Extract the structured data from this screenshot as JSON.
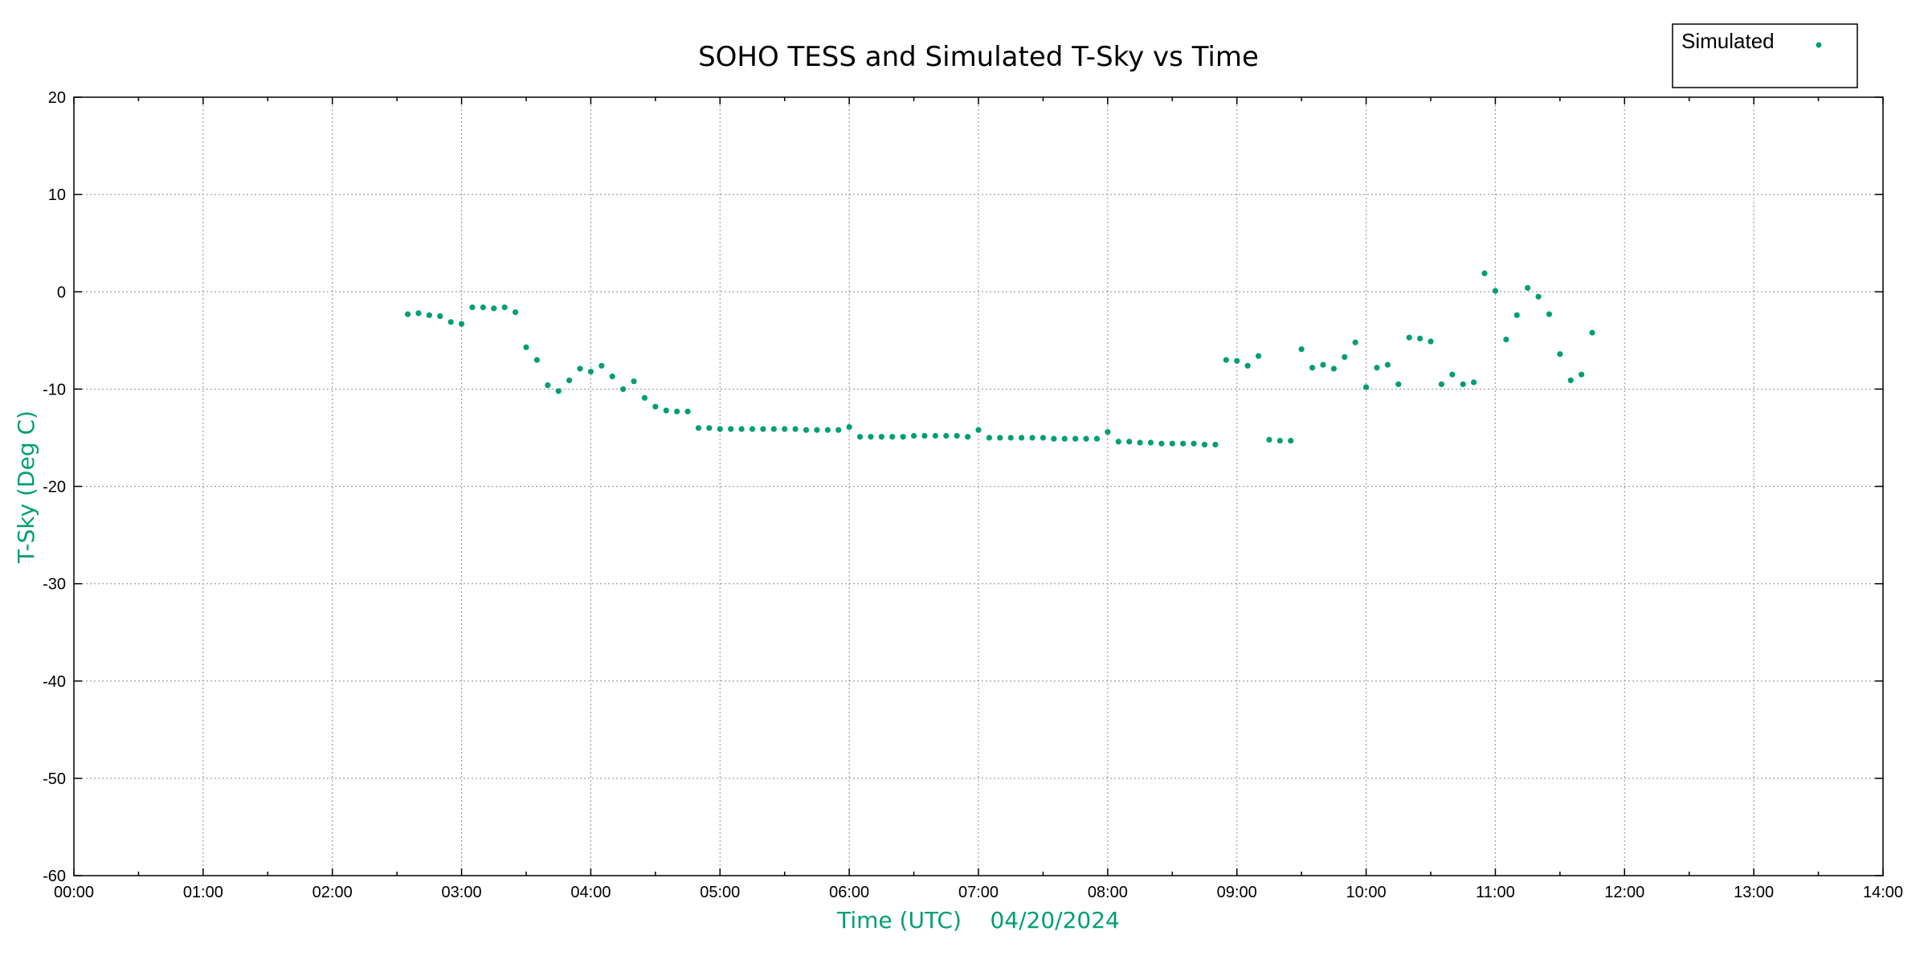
{
  "chart_data": {
    "type": "scatter",
    "title": "SOHO TESS and Simulated T-Sky vs Time",
    "xlabel": "Time (UTC)    04/20/2024",
    "ylabel": "T-Sky (Deg C)",
    "xlim": [
      "00:00",
      "14:00"
    ],
    "ylim": [
      -60,
      20
    ],
    "x_ticks": [
      "00:00",
      "01:00",
      "02:00",
      "03:00",
      "04:00",
      "05:00",
      "06:00",
      "07:00",
      "08:00",
      "09:00",
      "10:00",
      "11:00",
      "12:00",
      "13:00",
      "14:00"
    ],
    "y_ticks": [
      "20",
      "10",
      "0",
      "-10",
      "-20",
      "-30",
      "-40",
      "-50",
      "-60"
    ],
    "grid": true,
    "legend": {
      "placement": "top-right",
      "entries": [
        "Simulated"
      ]
    },
    "colors": {
      "series": "#009e73"
    },
    "series": [
      {
        "name": "Simulated",
        "x": [
          "02:35",
          "02:40",
          "02:45",
          "02:50",
          "02:55",
          "03:00",
          "03:05",
          "03:10",
          "03:15",
          "03:20",
          "03:25",
          "03:30",
          "03:35",
          "03:40",
          "03:45",
          "03:50",
          "03:55",
          "04:00",
          "04:05",
          "04:10",
          "04:15",
          "04:20",
          "04:25",
          "04:30",
          "04:35",
          "04:40",
          "04:45",
          "04:50",
          "04:55",
          "05:00",
          "05:05",
          "05:10",
          "05:15",
          "05:20",
          "05:25",
          "05:30",
          "05:35",
          "05:40",
          "05:45",
          "05:50",
          "05:55",
          "06:00",
          "06:05",
          "06:10",
          "06:15",
          "06:20",
          "06:25",
          "06:30",
          "06:35",
          "06:40",
          "06:45",
          "06:50",
          "06:55",
          "07:00",
          "07:05",
          "07:10",
          "07:15",
          "07:20",
          "07:25",
          "07:30",
          "07:35",
          "07:40",
          "07:45",
          "07:50",
          "07:55",
          "08:00",
          "08:05",
          "08:10",
          "08:15",
          "08:20",
          "08:25",
          "08:30",
          "08:35",
          "08:40",
          "08:45",
          "08:50",
          "08:55",
          "09:00",
          "09:05",
          "09:10",
          "09:15",
          "09:20",
          "09:25",
          "09:30",
          "09:35",
          "09:40",
          "09:45",
          "09:50",
          "09:55",
          "10:00",
          "10:05",
          "10:10",
          "10:15",
          "10:20",
          "10:25",
          "10:30",
          "10:35",
          "10:40",
          "10:45",
          "10:50",
          "10:55",
          "11:00",
          "11:05",
          "11:10",
          "11:15",
          "11:20",
          "11:25",
          "11:30",
          "11:35",
          "11:40",
          "11:45"
        ],
        "y": [
          -2.3,
          -2.2,
          -2.4,
          -2.5,
          -3.1,
          -3.3,
          -1.6,
          -1.6,
          -1.7,
          -1.6,
          -2.1,
          -5.7,
          -7.0,
          -9.6,
          -10.2,
          -9.1,
          -7.9,
          -8.2,
          -7.6,
          -8.7,
          -10.0,
          -9.2,
          -10.9,
          -11.8,
          -12.2,
          -12.3,
          -12.3,
          -14.0,
          -14.0,
          -14.1,
          -14.1,
          -14.1,
          -14.1,
          -14.1,
          -14.1,
          -14.1,
          -14.1,
          -14.2,
          -14.2,
          -14.2,
          -14.2,
          -13.9,
          -14.9,
          -14.9,
          -14.9,
          -14.9,
          -14.9,
          -14.8,
          -14.8,
          -14.8,
          -14.8,
          -14.8,
          -14.9,
          -14.2,
          -15.0,
          -15.0,
          -15.0,
          -15.0,
          -15.0,
          -15.0,
          -15.1,
          -15.1,
          -15.1,
          -15.1,
          -15.1,
          -14.4,
          -15.4,
          -15.4,
          -15.5,
          -15.5,
          -15.6,
          -15.6,
          -15.6,
          -15.6,
          -15.7,
          -15.7,
          -7.0,
          -7.1,
          -7.6,
          -6.6,
          -15.2,
          -15.3,
          -15.3,
          -5.9,
          -7.8,
          -7.5,
          -7.9,
          -6.7,
          -5.2,
          -9.8,
          -7.8,
          -7.5,
          -9.5,
          -4.7,
          -4.8,
          -5.1,
          -9.5,
          -8.5,
          -9.5,
          -9.3,
          1.9,
          0.1,
          -4.9,
          -2.4,
          0.4,
          -0.5,
          -2.3,
          -6.4,
          -9.1,
          -8.5,
          -4.2
        ]
      }
    ]
  }
}
